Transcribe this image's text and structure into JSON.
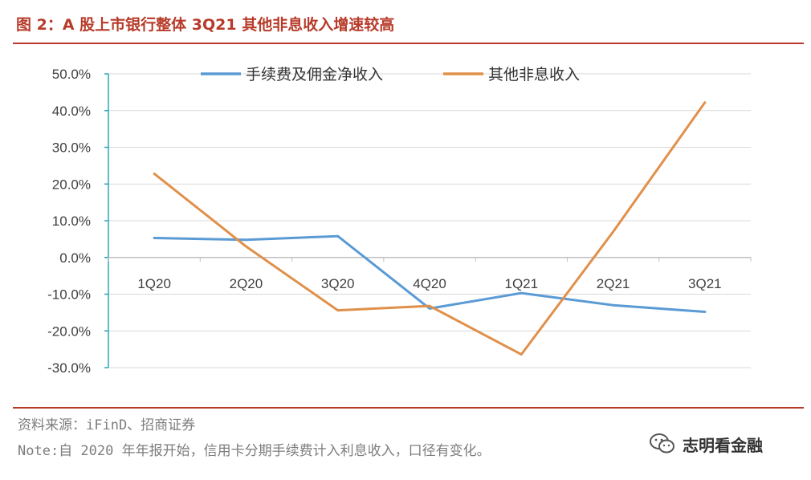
{
  "figure": {
    "title": "图 2：A 股上市银行整体 3Q21 其他非息收入增速较高",
    "source": "资料来源：iFinD、招商证券",
    "note": "Note:自 2020 年年报开始，信用卡分期手续费计入利息收入，口径有变化。",
    "watermark": "志明看金融"
  },
  "chart_data": {
    "type": "line",
    "title": "A 股上市银行整体 3Q21 其他非息收入增速较高",
    "categories": [
      "1Q20",
      "2Q20",
      "3Q20",
      "4Q20",
      "1Q21",
      "2Q21",
      "3Q21"
    ],
    "series": [
      {
        "name": "手续费及佣金净收入",
        "color": "#5b9bd5",
        "values": [
          5.3,
          4.8,
          5.8,
          -13.9,
          -9.7,
          -13.0,
          -14.8
        ]
      },
      {
        "name": "其他非息收入",
        "color": "#e0904a",
        "values": [
          22.8,
          3.0,
          -14.4,
          -13.2,
          -26.4,
          7.0,
          42.2
        ]
      }
    ],
    "y_ticks": [
      "50.0%",
      "40.0%",
      "30.0%",
      "20.0%",
      "10.0%",
      "0.0%",
      "-10.0%",
      "-20.0%",
      "-30.0%"
    ],
    "ylim": [
      -30,
      50
    ],
    "legend_position": "top"
  }
}
